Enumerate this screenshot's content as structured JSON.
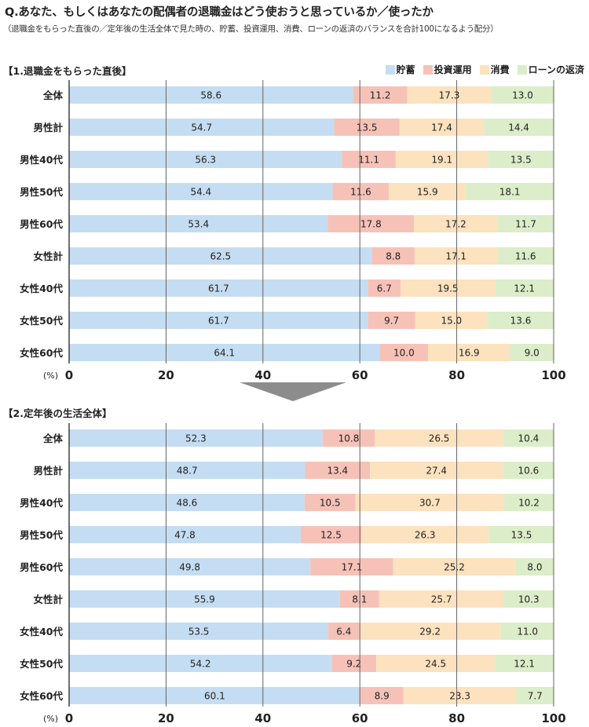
{
  "title": "Q.あなた、もしくはあなたの配偶者の退職金はどう使おうと思っているか／使ったか",
  "subtitle": "（退職金をもらった直後の／定年後の生活全体で見た時の、貯蓄、投資運用、消費、ローンの返済のバランスを合計100になるよう配分）",
  "legend": [
    {
      "name": "貯蓄",
      "color": "#c5ddf2"
    },
    {
      "name": "投資運用",
      "color": "#f6c2b8"
    },
    {
      "name": "消費",
      "color": "#fce2bf"
    },
    {
      "name": "ローンの返済",
      "color": "#dcedc9"
    }
  ],
  "chart_data": [
    {
      "type": "bar",
      "stacked": true,
      "orientation": "horizontal",
      "title": "【1.退職金をもらった直後】",
      "xlabel": "(%)",
      "xlim": [
        0,
        100
      ],
      "xticks": [
        "0",
        "20",
        "40",
        "60",
        "80",
        "100"
      ],
      "categories": [
        "全体",
        "男性計",
        "男性40代",
        "男性50代",
        "男性60代",
        "女性計",
        "女性40代",
        "女性50代",
        "女性60代"
      ],
      "series": [
        {
          "name": "貯蓄",
          "values": [
            58.6,
            54.7,
            56.3,
            54.4,
            53.4,
            62.5,
            61.7,
            61.7,
            64.1
          ]
        },
        {
          "name": "投資運用",
          "values": [
            11.2,
            13.5,
            11.1,
            11.6,
            17.8,
            8.8,
            6.7,
            9.7,
            10.0
          ]
        },
        {
          "name": "消費",
          "values": [
            17.3,
            17.4,
            19.1,
            15.9,
            17.2,
            17.1,
            19.5,
            15.0,
            16.9
          ]
        },
        {
          "name": "ローンの返済",
          "values": [
            13.0,
            14.4,
            13.5,
            18.1,
            11.7,
            11.6,
            12.1,
            13.6,
            9.0
          ]
        }
      ]
    },
    {
      "type": "bar",
      "stacked": true,
      "orientation": "horizontal",
      "title": "【2.定年後の生活全体】",
      "xlabel": "(%)",
      "xlim": [
        0,
        100
      ],
      "xticks": [
        "0",
        "20",
        "40",
        "60",
        "80",
        "100"
      ],
      "categories": [
        "全体",
        "男性計",
        "男性40代",
        "男性50代",
        "男性60代",
        "女性計",
        "女性40代",
        "女性50代",
        "女性60代"
      ],
      "series": [
        {
          "name": "貯蓄",
          "values": [
            52.3,
            48.7,
            48.6,
            47.8,
            49.8,
            55.9,
            53.5,
            54.2,
            60.1
          ]
        },
        {
          "name": "投資運用",
          "values": [
            10.8,
            13.4,
            10.5,
            12.5,
            17.1,
            8.1,
            6.4,
            9.2,
            8.9
          ]
        },
        {
          "name": "消費",
          "values": [
            26.5,
            27.4,
            30.7,
            26.3,
            25.2,
            25.7,
            29.2,
            24.5,
            23.3
          ]
        },
        {
          "name": "ローンの返済",
          "values": [
            10.4,
            10.6,
            10.2,
            13.5,
            8.0,
            10.3,
            11.0,
            12.1,
            7.7
          ]
        }
      ]
    }
  ]
}
